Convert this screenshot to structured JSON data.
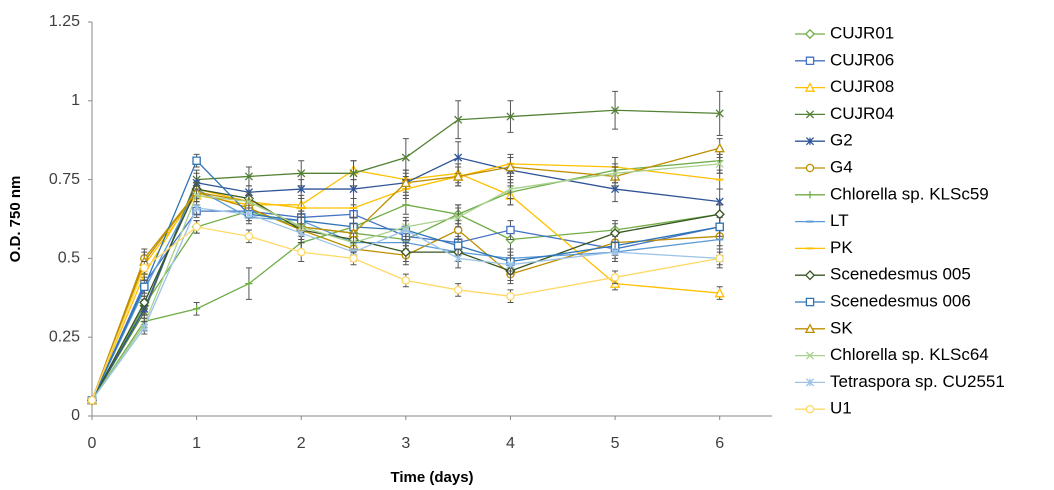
{
  "chart_data": {
    "type": "line",
    "x_label": "Time (days)",
    "y_label": "O.D. 750 nm",
    "x": [
      0,
      0.5,
      1,
      1.5,
      2,
      2.5,
      3,
      3.5,
      4,
      5,
      6
    ],
    "xlim": [
      0,
      6.5
    ],
    "xticks": [
      0,
      1,
      2,
      3,
      4,
      5,
      6
    ],
    "ylim": [
      0,
      1.25
    ],
    "yticks": [
      0,
      0.25,
      0.5,
      0.75,
      1,
      1.25
    ],
    "series": [
      {
        "name": "CUJR01",
        "color": "#70ad47",
        "marker": "diamond",
        "values": [
          0.05,
          0.35,
          0.6,
          0.65,
          0.6,
          0.58,
          0.56,
          0.64,
          0.56,
          0.59,
          0.64
        ],
        "errors": [
          0.01,
          0.02,
          0.02,
          0.02,
          0.03,
          0.03,
          0.03,
          0.03,
          0.03,
          0.03,
          0.03
        ]
      },
      {
        "name": "CUJR06",
        "color": "#4472c4",
        "marker": "square",
        "values": [
          0.05,
          0.42,
          0.65,
          0.65,
          0.63,
          0.64,
          0.57,
          0.55,
          0.59,
          0.53,
          0.6
        ],
        "errors": [
          0.01,
          0.02,
          0.02,
          0.02,
          0.03,
          0.03,
          0.03,
          0.03,
          0.03,
          0.03,
          0.03
        ]
      },
      {
        "name": "CUJR08",
        "color": "#ffc000",
        "marker": "triangle",
        "values": [
          0.05,
          0.48,
          0.7,
          0.67,
          0.67,
          0.78,
          0.75,
          0.77,
          0.7,
          0.42,
          0.39
        ],
        "errors": [
          0.01,
          0.02,
          0.02,
          0.02,
          0.03,
          0.03,
          0.03,
          0.03,
          0.03,
          0.02,
          0.02
        ]
      },
      {
        "name": "CUJR04",
        "color": "#548235",
        "marker": "x",
        "values": [
          0.05,
          0.33,
          0.75,
          0.76,
          0.77,
          0.77,
          0.82,
          0.94,
          0.95,
          0.97,
          0.96
        ],
        "errors": [
          0.01,
          0.02,
          0.03,
          0.03,
          0.04,
          0.04,
          0.06,
          0.06,
          0.05,
          0.06,
          0.07
        ]
      },
      {
        "name": "G2",
        "color": "#2f5597",
        "marker": "star",
        "values": [
          0.05,
          0.34,
          0.74,
          0.71,
          0.72,
          0.72,
          0.74,
          0.82,
          0.78,
          0.72,
          0.68
        ],
        "errors": [
          0.01,
          0.02,
          0.03,
          0.02,
          0.03,
          0.03,
          0.04,
          0.05,
          0.04,
          0.04,
          0.04
        ]
      },
      {
        "name": "G4",
        "color": "#bf8f00",
        "marker": "circle",
        "values": [
          0.05,
          0.5,
          0.71,
          0.66,
          0.59,
          0.53,
          0.51,
          0.59,
          0.45,
          0.55,
          0.57
        ],
        "errors": [
          0.01,
          0.03,
          0.02,
          0.02,
          0.03,
          0.03,
          0.03,
          0.03,
          0.03,
          0.03,
          0.03
        ]
      },
      {
        "name": "Chlorella sp. KLSc59",
        "color": "#70ad47",
        "marker": "plus",
        "values": [
          0.05,
          0.3,
          0.34,
          0.42,
          0.55,
          0.6,
          0.67,
          0.64,
          0.71,
          0.78,
          0.81
        ],
        "errors": [
          0.01,
          0.02,
          0.02,
          0.05,
          0.03,
          0.03,
          0.03,
          0.03,
          0.04,
          0.04,
          0.04
        ]
      },
      {
        "name": "LT",
        "color": "#5b9bd5",
        "marker": "dash",
        "values": [
          0.05,
          0.4,
          0.72,
          0.63,
          0.62,
          0.55,
          0.55,
          0.52,
          0.5,
          0.52,
          0.56
        ],
        "errors": [
          0.01,
          0.02,
          0.02,
          0.02,
          0.03,
          0.03,
          0.03,
          0.03,
          0.03,
          0.03,
          0.03
        ]
      },
      {
        "name": "PK",
        "color": "#ffc000",
        "marker": "dash",
        "values": [
          0.05,
          0.45,
          0.72,
          0.68,
          0.66,
          0.66,
          0.72,
          0.76,
          0.8,
          0.79,
          0.75
        ],
        "errors": [
          0.01,
          0.02,
          0.02,
          0.02,
          0.03,
          0.03,
          0.03,
          0.03,
          0.03,
          0.03,
          0.03
        ]
      },
      {
        "name": "Scenedesmus 005",
        "color": "#375623",
        "marker": "diamond",
        "values": [
          0.05,
          0.36,
          0.72,
          0.69,
          0.59,
          0.56,
          0.52,
          0.52,
          0.46,
          0.58,
          0.64
        ],
        "errors": [
          0.01,
          0.02,
          0.02,
          0.02,
          0.03,
          0.03,
          0.03,
          0.03,
          0.03,
          0.03,
          0.03
        ]
      },
      {
        "name": "Scenedesmus 006",
        "color": "#2e75b6",
        "marker": "square",
        "values": [
          0.05,
          0.41,
          0.81,
          0.64,
          0.62,
          0.6,
          0.59,
          0.54,
          0.49,
          0.54,
          0.6
        ],
        "errors": [
          0.01,
          0.02,
          0.02,
          0.02,
          0.03,
          0.03,
          0.03,
          0.03,
          0.03,
          0.03,
          0.03
        ]
      },
      {
        "name": "SK",
        "color": "#bf8f00",
        "marker": "triangle",
        "values": [
          0.05,
          0.49,
          0.71,
          0.68,
          0.6,
          0.58,
          0.74,
          0.76,
          0.79,
          0.76,
          0.85
        ],
        "errors": [
          0.01,
          0.03,
          0.02,
          0.02,
          0.03,
          0.03,
          0.03,
          0.03,
          0.03,
          0.03,
          0.03
        ]
      },
      {
        "name": "Chlorella sp. KLSc64",
        "color": "#a9d18e",
        "marker": "x",
        "values": [
          0.05,
          0.29,
          0.7,
          0.68,
          0.6,
          0.55,
          0.6,
          0.63,
          0.72,
          0.77,
          0.8
        ],
        "errors": [
          0.01,
          0.02,
          0.02,
          0.02,
          0.03,
          0.03,
          0.03,
          0.03,
          0.03,
          0.03,
          0.03
        ]
      },
      {
        "name": "Tetraspora sp. CU2551",
        "color": "#9dc3e6",
        "marker": "star",
        "values": [
          0.05,
          0.28,
          0.66,
          0.64,
          0.58,
          0.52,
          0.59,
          0.5,
          0.48,
          0.52,
          0.5
        ],
        "errors": [
          0.01,
          0.02,
          0.02,
          0.02,
          0.03,
          0.03,
          0.03,
          0.03,
          0.03,
          0.03,
          0.03
        ]
      },
      {
        "name": "U1",
        "color": "#ffd966",
        "marker": "circle",
        "values": [
          0.05,
          0.47,
          0.6,
          0.57,
          0.52,
          0.5,
          0.43,
          0.4,
          0.38,
          0.44,
          0.5
        ],
        "errors": [
          0.01,
          0.02,
          0.02,
          0.02,
          0.03,
          0.02,
          0.02,
          0.02,
          0.02,
          0.02,
          0.02
        ]
      }
    ]
  }
}
